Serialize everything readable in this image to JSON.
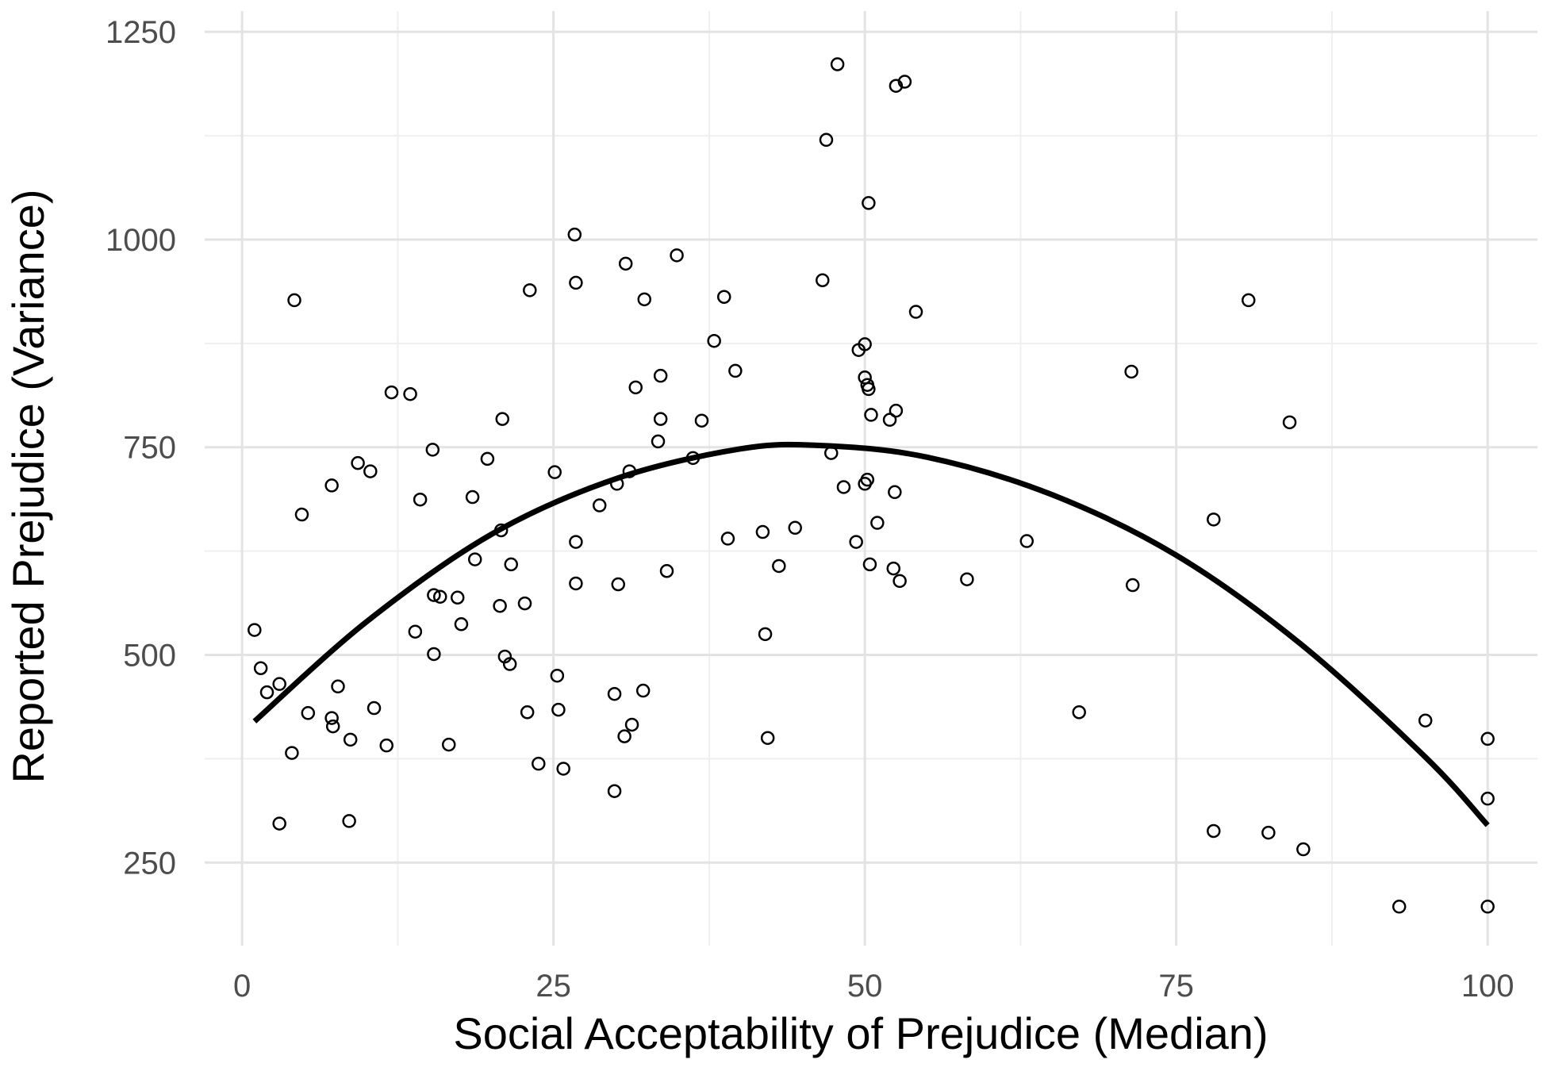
{
  "chart_data": {
    "type": "scatter",
    "title": "",
    "xlabel": "Social Acceptability of Prejudice (Median)",
    "ylabel": "Reported Prejudice (Variance)",
    "xlim": [
      -3,
      104
    ],
    "ylim": [
      150,
      1275
    ],
    "x_ticks": [
      0,
      25,
      50,
      75,
      100
    ],
    "y_ticks": [
      250,
      500,
      750,
      1000,
      1250
    ],
    "x_tick_labels": [
      "0",
      "25",
      "50",
      "75",
      "100"
    ],
    "y_tick_labels": [
      "250",
      "500",
      "750",
      "1000",
      "1250"
    ],
    "grid": true,
    "legend": "none",
    "points": [
      {
        "x": 1,
        "y": 530
      },
      {
        "x": 1.5,
        "y": 484
      },
      {
        "x": 2,
        "y": 455
      },
      {
        "x": 3,
        "y": 465
      },
      {
        "x": 3,
        "y": 297
      },
      {
        "x": 4,
        "y": 382
      },
      {
        "x": 4.2,
        "y": 927
      },
      {
        "x": 4.8,
        "y": 669
      },
      {
        "x": 5.3,
        "y": 430
      },
      {
        "x": 7.2,
        "y": 424
      },
      {
        "x": 7.3,
        "y": 414
      },
      {
        "x": 7.2,
        "y": 704
      },
      {
        "x": 7.7,
        "y": 462
      },
      {
        "x": 8.6,
        "y": 300
      },
      {
        "x": 8.7,
        "y": 398
      },
      {
        "x": 9.3,
        "y": 731
      },
      {
        "x": 10.3,
        "y": 721
      },
      {
        "x": 10.6,
        "y": 436
      },
      {
        "x": 11.6,
        "y": 391
      },
      {
        "x": 12,
        "y": 816
      },
      {
        "x": 13.5,
        "y": 814
      },
      {
        "x": 13.9,
        "y": 528
      },
      {
        "x": 14.3,
        "y": 687
      },
      {
        "x": 15.3,
        "y": 747
      },
      {
        "x": 15.4,
        "y": 572
      },
      {
        "x": 15.4,
        "y": 501
      },
      {
        "x": 15.9,
        "y": 570
      },
      {
        "x": 16.6,
        "y": 392
      },
      {
        "x": 17.3,
        "y": 569
      },
      {
        "x": 17.6,
        "y": 537
      },
      {
        "x": 18.5,
        "y": 690
      },
      {
        "x": 18.7,
        "y": 615
      },
      {
        "x": 19.7,
        "y": 736
      },
      {
        "x": 20.8,
        "y": 650
      },
      {
        "x": 20.7,
        "y": 559
      },
      {
        "x": 20.9,
        "y": 784
      },
      {
        "x": 21.1,
        "y": 498
      },
      {
        "x": 21.5,
        "y": 489
      },
      {
        "x": 21.6,
        "y": 609
      },
      {
        "x": 22.7,
        "y": 562
      },
      {
        "x": 22.9,
        "y": 431
      },
      {
        "x": 23.1,
        "y": 939
      },
      {
        "x": 23.8,
        "y": 369
      },
      {
        "x": 25.1,
        "y": 720
      },
      {
        "x": 25.3,
        "y": 475
      },
      {
        "x": 25.4,
        "y": 434
      },
      {
        "x": 25.8,
        "y": 363
      },
      {
        "x": 26.7,
        "y": 1006
      },
      {
        "x": 26.8,
        "y": 948
      },
      {
        "x": 26.8,
        "y": 636
      },
      {
        "x": 26.8,
        "y": 586
      },
      {
        "x": 28.7,
        "y": 680
      },
      {
        "x": 29.9,
        "y": 453
      },
      {
        "x": 29.9,
        "y": 336
      },
      {
        "x": 30.1,
        "y": 706
      },
      {
        "x": 30.2,
        "y": 585
      },
      {
        "x": 30.7,
        "y": 402
      },
      {
        "x": 30.8,
        "y": 971
      },
      {
        "x": 31.1,
        "y": 721
      },
      {
        "x": 31.3,
        "y": 416
      },
      {
        "x": 31.6,
        "y": 822
      },
      {
        "x": 32.2,
        "y": 457
      },
      {
        "x": 32.3,
        "y": 928
      },
      {
        "x": 33.4,
        "y": 757
      },
      {
        "x": 33.6,
        "y": 836
      },
      {
        "x": 33.6,
        "y": 784
      },
      {
        "x": 34.1,
        "y": 601
      },
      {
        "x": 34.9,
        "y": 981
      },
      {
        "x": 36.2,
        "y": 737
      },
      {
        "x": 36.9,
        "y": 782
      },
      {
        "x": 37.9,
        "y": 878
      },
      {
        "x": 38.7,
        "y": 931
      },
      {
        "x": 39,
        "y": 640
      },
      {
        "x": 39.6,
        "y": 842
      },
      {
        "x": 41.8,
        "y": 648
      },
      {
        "x": 42,
        "y": 525
      },
      {
        "x": 42.2,
        "y": 400
      },
      {
        "x": 43.1,
        "y": 607
      },
      {
        "x": 44.4,
        "y": 653
      },
      {
        "x": 46.6,
        "y": 951
      },
      {
        "x": 46.9,
        "y": 1120
      },
      {
        "x": 47.3,
        "y": 743
      },
      {
        "x": 47.8,
        "y": 1211
      },
      {
        "x": 48.3,
        "y": 702
      },
      {
        "x": 49.3,
        "y": 636
      },
      {
        "x": 49.5,
        "y": 867
      },
      {
        "x": 50,
        "y": 874
      },
      {
        "x": 50,
        "y": 834
      },
      {
        "x": 50,
        "y": 706
      },
      {
        "x": 50.2,
        "y": 825
      },
      {
        "x": 50.3,
        "y": 820
      },
      {
        "x": 50.2,
        "y": 711
      },
      {
        "x": 50.3,
        "y": 1044
      },
      {
        "x": 50.4,
        "y": 609
      },
      {
        "x": 50.5,
        "y": 789
      },
      {
        "x": 51,
        "y": 659
      },
      {
        "x": 52,
        "y": 783
      },
      {
        "x": 52.3,
        "y": 604
      },
      {
        "x": 52.4,
        "y": 696
      },
      {
        "x": 52.5,
        "y": 1185
      },
      {
        "x": 52.5,
        "y": 794
      },
      {
        "x": 52.8,
        "y": 589
      },
      {
        "x": 53.2,
        "y": 1190
      },
      {
        "x": 54.1,
        "y": 913
      },
      {
        "x": 58.2,
        "y": 591
      },
      {
        "x": 63,
        "y": 637
      },
      {
        "x": 67.2,
        "y": 431
      },
      {
        "x": 71.4,
        "y": 841
      },
      {
        "x": 71.5,
        "y": 584
      },
      {
        "x": 78,
        "y": 663
      },
      {
        "x": 78,
        "y": 288
      },
      {
        "x": 80.8,
        "y": 927
      },
      {
        "x": 82.4,
        "y": 286
      },
      {
        "x": 84.1,
        "y": 780
      },
      {
        "x": 85.2,
        "y": 266
      },
      {
        "x": 92.9,
        "y": 197
      },
      {
        "x": 95,
        "y": 421
      },
      {
        "x": 100,
        "y": 399
      },
      {
        "x": 100,
        "y": 327
      },
      {
        "x": 100,
        "y": 197
      }
    ],
    "fit_curve": [
      {
        "x": 1,
        "y": 420
      },
      {
        "x": 10,
        "y": 540
      },
      {
        "x": 20,
        "y": 645
      },
      {
        "x": 30,
        "y": 712
      },
      {
        "x": 40,
        "y": 748
      },
      {
        "x": 46.5,
        "y": 752
      },
      {
        "x": 55,
        "y": 738
      },
      {
        "x": 65,
        "y": 693
      },
      {
        "x": 75,
        "y": 620
      },
      {
        "x": 85,
        "y": 513
      },
      {
        "x": 95,
        "y": 377
      },
      {
        "x": 100,
        "y": 295
      }
    ]
  }
}
